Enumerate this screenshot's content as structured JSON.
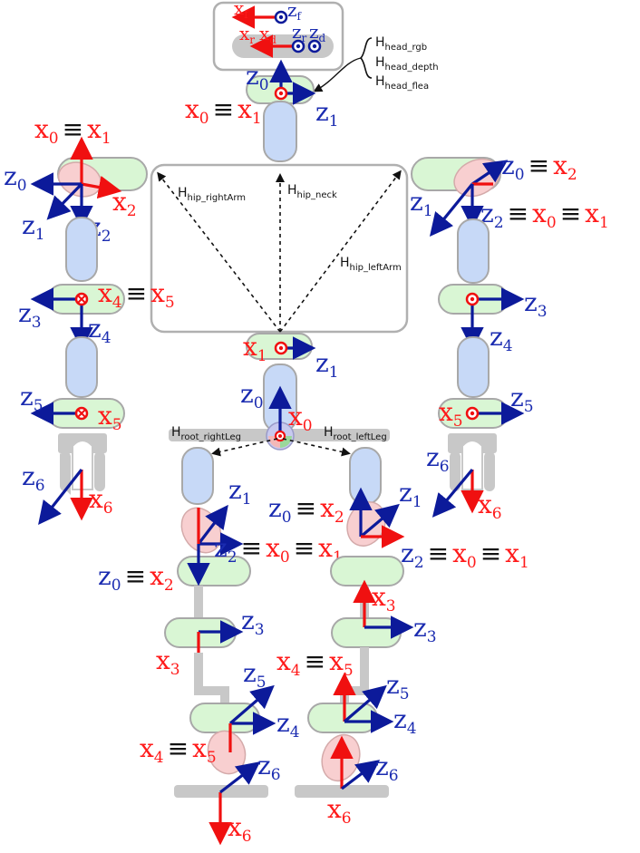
{
  "transforms": {
    "head": [
      "H",
      "head_rgb",
      "H",
      "head_depth",
      "H",
      "head_flea"
    ],
    "hip_rightArm": [
      "H",
      "hip_rightArm"
    ],
    "hip_neck": [
      "H",
      "hip_neck"
    ],
    "hip_leftArm": [
      "H",
      "hip_leftArm"
    ],
    "root_rightLeg": [
      "H",
      "root_rightLeg"
    ],
    "root_leftLeg": [
      "H",
      "root_leftLeg"
    ]
  },
  "equiv": "≡",
  "head": {
    "xf": [
      "x",
      "f"
    ],
    "zf": [
      "z",
      "f"
    ],
    "xr": [
      "x",
      "r"
    ],
    "xd": [
      "x",
      "d"
    ],
    "zr": [
      "z",
      "r"
    ],
    "zd": [
      "z",
      "d"
    ],
    "z0": [
      "z",
      "0"
    ],
    "x0": [
      "x",
      "0"
    ],
    "x1": [
      "x",
      "1"
    ],
    "z1": [
      "z",
      "1"
    ]
  },
  "right_arm": {
    "x0": [
      "x",
      "0"
    ],
    "x1": [
      "x",
      "1"
    ],
    "z0": [
      "z",
      "0"
    ],
    "x2": [
      "x",
      "2"
    ],
    "z1": [
      "z",
      "1"
    ],
    "z2": [
      "z",
      "2"
    ],
    "z3": [
      "z",
      "3"
    ],
    "x4": [
      "x",
      "4"
    ],
    "x5": [
      "x",
      "5"
    ],
    "z4": [
      "z",
      "4"
    ],
    "z5": [
      "z",
      "5"
    ],
    "x5b": [
      "x",
      "5"
    ],
    "z6": [
      "z",
      "6"
    ],
    "x6": [
      "x",
      "6"
    ]
  },
  "left_arm": {
    "z0": [
      "z",
      "0"
    ],
    "x2": [
      "x",
      "2"
    ],
    "z1": [
      "z",
      "1"
    ],
    "z2": [
      "z",
      "2"
    ],
    "x0": [
      "x",
      "0"
    ],
    "x1": [
      "x",
      "1"
    ],
    "z3": [
      "z",
      "3"
    ],
    "z4": [
      "z",
      "4"
    ],
    "x5": [
      "x",
      "5"
    ],
    "z5": [
      "z",
      "5"
    ],
    "z6": [
      "z",
      "6"
    ],
    "x6": [
      "x",
      "6"
    ]
  },
  "hip": {
    "x1": [
      "x",
      "1"
    ],
    "z1": [
      "z",
      "1"
    ],
    "z0": [
      "z",
      "0"
    ],
    "x0": [
      "x",
      "0"
    ]
  },
  "right_leg": {
    "z1": [
      "z",
      "1"
    ],
    "z2": [
      "z",
      "2"
    ],
    "x0": [
      "x",
      "0"
    ],
    "x1": [
      "x",
      "1"
    ],
    "z0": [
      "z",
      "0"
    ],
    "x2": [
      "x",
      "2"
    ],
    "z3": [
      "z",
      "3"
    ],
    "x3": [
      "x",
      "3"
    ],
    "z5": [
      "z",
      "5"
    ],
    "z4": [
      "z",
      "4"
    ],
    "x4": [
      "x",
      "4"
    ],
    "x5": [
      "x",
      "5"
    ],
    "z6": [
      "z",
      "6"
    ],
    "x6": [
      "x",
      "6"
    ]
  },
  "left_leg": {
    "z1": [
      "z",
      "1"
    ],
    "z0": [
      "z",
      "0"
    ],
    "x2": [
      "x",
      "2"
    ],
    "z2": [
      "z",
      "2"
    ],
    "x0": [
      "x",
      "0"
    ],
    "x1": [
      "x",
      "1"
    ],
    "x3": [
      "x",
      "3"
    ],
    "z3": [
      "z",
      "3"
    ],
    "x4": [
      "x",
      "4"
    ],
    "x5": [
      "x",
      "5"
    ],
    "z5": [
      "z",
      "5"
    ],
    "z4": [
      "z",
      "4"
    ],
    "z6": [
      "z",
      "6"
    ],
    "x6": [
      "x",
      "6"
    ]
  },
  "colors": {
    "x_axis": "#f01010",
    "z_axis": "#0c1a9a",
    "joint_cylinder": "#d9f6d4",
    "link_cylinder": "#c7d9f7",
    "base": "#c8c8c8"
  }
}
